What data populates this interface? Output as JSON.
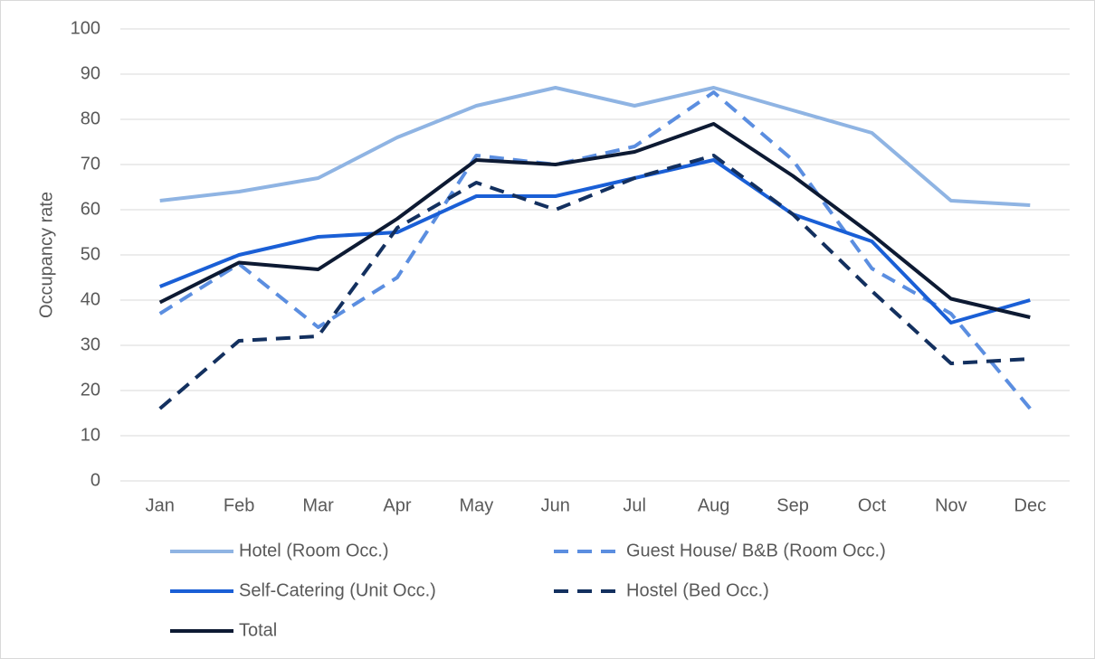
{
  "chart_data": {
    "type": "line",
    "y_label": "Occupancy rate",
    "categories": [
      "Jan",
      "Feb",
      "Mar",
      "Apr",
      "May",
      "Jun",
      "Jul",
      "Aug",
      "Sep",
      "Oct",
      "Nov",
      "Dec"
    ],
    "series": [
      {
        "name": "Hotel (Room Occ.)",
        "color": "#8fb4e3",
        "dashed": false,
        "values": [
          62,
          64,
          67,
          76,
          83,
          87,
          83,
          87,
          82,
          77,
          62,
          61
        ]
      },
      {
        "name": "Guest House/ B&B (Room Occ.)",
        "color": "#5b8ee0",
        "dashed": true,
        "values": [
          37,
          48,
          34,
          45,
          72,
          70,
          74,
          86,
          71,
          47,
          37,
          16
        ]
      },
      {
        "name": "Self-Catering (Unit Occ.)",
        "color": "#1a5fd6",
        "dashed": false,
        "values": [
          43,
          50,
          54,
          55,
          63,
          63,
          67,
          71,
          59,
          53,
          35,
          40
        ]
      },
      {
        "name": "Hostel (Bed Occ.)",
        "color": "#13305f",
        "dashed": true,
        "values": [
          16,
          31,
          32,
          56,
          66,
          60,
          67,
          72,
          59,
          42,
          26,
          27
        ]
      },
      {
        "name": "Total",
        "color": "#0d1a33",
        "dashed": false,
        "values": [
          39.5,
          48.3,
          46.8,
          58,
          71,
          70,
          72.8,
          79,
          67.5,
          54.5,
          40.3,
          36.2
        ]
      }
    ],
    "ylim": [
      0,
      100
    ],
    "yticks": [
      0,
      10,
      20,
      30,
      40,
      50,
      60,
      70,
      80,
      90,
      100
    ],
    "grid": true,
    "legend": "bottom"
  }
}
